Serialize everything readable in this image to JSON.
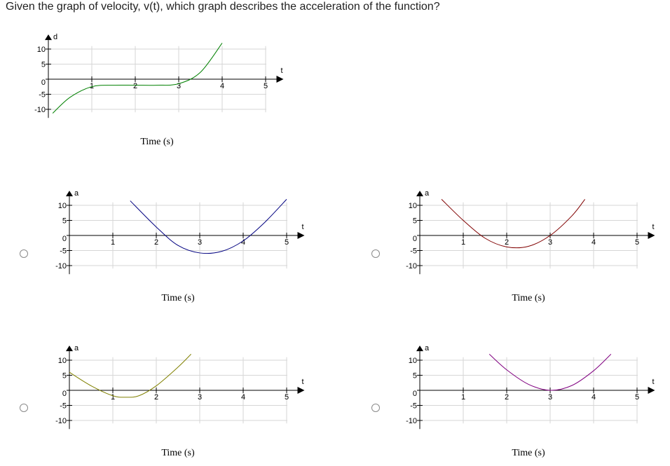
{
  "question": "Given the graph of velocity, v(t), which graph describes the acceleration of the function?",
  "graphs": [
    {
      "id": "velocity",
      "ylabel": "d",
      "xlabel": "t",
      "title": "Time (s)",
      "color": "#008000",
      "yticks": [
        "10",
        "5",
        "0",
        "-5",
        "-10"
      ],
      "xticks": [
        "1",
        "2",
        "3",
        "4",
        "5"
      ],
      "chart_data": {
        "type": "line",
        "x": [
          0.1,
          0.5,
          1,
          1.5,
          2,
          2.5,
          3,
          3.5,
          4
        ],
        "y": [
          -11.3,
          -6,
          -2.5,
          -2,
          -2,
          -2,
          -1.5,
          2.3,
          12
        ]
      }
    },
    {
      "id": "option-a",
      "ylabel": "a",
      "xlabel": "t",
      "title": "Time (s)",
      "color": "#000080",
      "yticks": [
        "10",
        "5",
        "0",
        "-5",
        "-10"
      ],
      "xticks": [
        "1",
        "2",
        "3",
        "4",
        "5"
      ],
      "chart_data": {
        "type": "line",
        "x": [
          1.4,
          2,
          2.5,
          3,
          3.5,
          4,
          4.5,
          5
        ],
        "y": [
          11.5,
          2.8,
          -3.3,
          -5.8,
          -5.3,
          -1.8,
          4.4,
          12
        ]
      }
    },
    {
      "id": "option-b",
      "ylabel": "a",
      "xlabel": "t",
      "title": "Time (s)",
      "color": "#800000",
      "yticks": [
        "10",
        "5",
        "0",
        "-5",
        "-10"
      ],
      "xticks": [
        "1",
        "2",
        "3",
        "4",
        "5"
      ],
      "chart_data": {
        "type": "line",
        "x": [
          0.5,
          1,
          1.5,
          2,
          2.5,
          3,
          3.5,
          3.8
        ],
        "y": [
          12,
          5,
          -0.9,
          -3.8,
          -3.6,
          0,
          6.5,
          12
        ]
      }
    },
    {
      "id": "option-c",
      "ylabel": "a",
      "xlabel": "t",
      "title": "Time (s)",
      "color": "#808000",
      "yticks": [
        "10",
        "5",
        "0",
        "-5",
        "-10"
      ],
      "xticks": [
        "1",
        "2",
        "3",
        "4",
        "5"
      ],
      "chart_data": {
        "type": "line",
        "x": [
          0,
          0.5,
          1,
          1.3,
          1.6,
          2,
          2.5,
          2.8
        ],
        "y": [
          6,
          1.5,
          -1.8,
          -2.3,
          -1.8,
          1.5,
          7.7,
          12
        ]
      }
    },
    {
      "id": "option-d",
      "ylabel": "a",
      "xlabel": "t",
      "title": "Time (s)",
      "color": "#800080",
      "yticks": [
        "10",
        "5",
        "0",
        "-5",
        "-10"
      ],
      "xticks": [
        "1",
        "2",
        "3",
        "4",
        "5"
      ],
      "chart_data": {
        "type": "line",
        "x": [
          1.6,
          2,
          2.5,
          3,
          3.5,
          4,
          4.4
        ],
        "y": [
          12,
          6.8,
          2,
          0,
          1.6,
          6.5,
          12
        ]
      }
    }
  ]
}
